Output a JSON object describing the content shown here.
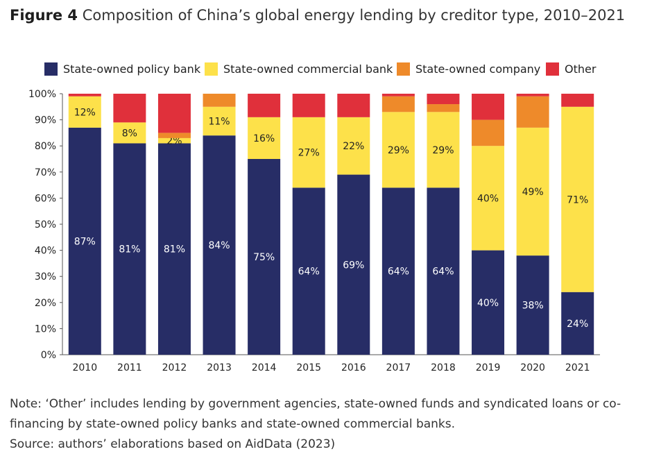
{
  "figure": {
    "label": "Figure 4",
    "title": "Composition of China’s global energy lending by creditor type, 2010–2021"
  },
  "chart_data": {
    "type": "bar",
    "stacked": true,
    "categories": [
      "2010",
      "2011",
      "2012",
      "2013",
      "2014",
      "2015",
      "2016",
      "2017",
      "2018",
      "2019",
      "2020",
      "2021"
    ],
    "series": [
      {
        "name": "State-owned policy bank",
        "color": "#272d66",
        "values": [
          87,
          81,
          81,
          84,
          75,
          64,
          69,
          64,
          64,
          40,
          38,
          24
        ],
        "labels": [
          "87%",
          "81%",
          "81%",
          "84%",
          "75%",
          "64%",
          "69%",
          "64%",
          "64%",
          "40%",
          "38%",
          "24%"
        ]
      },
      {
        "name": "State-owned commercial bank",
        "color": "#fde14a",
        "values": [
          12,
          8,
          2,
          11,
          16,
          27,
          22,
          29,
          29,
          40,
          49,
          71
        ],
        "labels": [
          "12%",
          "8%",
          "2%",
          "11%",
          "16%",
          "27%",
          "22%",
          "29%",
          "29%",
          "40%",
          "49%",
          "71%"
        ]
      },
      {
        "name": "State-owned company",
        "color": "#ee8a2a",
        "values": [
          0,
          0,
          2,
          5,
          0,
          0,
          0,
          6,
          3,
          10,
          12,
          0
        ],
        "labels": [
          "",
          "",
          "",
          "",
          "",
          "",
          "",
          "",
          "",
          "",
          "",
          ""
        ]
      },
      {
        "name": "Other",
        "color": "#e0303b",
        "values": [
          1,
          11,
          15,
          0,
          9,
          9,
          9,
          1,
          4,
          10,
          1,
          5
        ],
        "labels": [
          "",
          "",
          "",
          "",
          "",
          "",
          "",
          "",
          "",
          "",
          "",
          ""
        ]
      }
    ],
    "ylim": [
      0,
      100
    ],
    "yticks": [
      "0%",
      "10%",
      "20%",
      "30%",
      "40%",
      "50%",
      "60%",
      "70%",
      "80%",
      "90%",
      "100%"
    ],
    "legend_position": "top",
    "grid": false
  },
  "notes": {
    "note": "Note: ‘Other’ includes lending by government agencies, state-owned funds and syndicated loans or co-financing by state-owned policy banks and state-owned commercial banks.",
    "source": "Source: authors’ elaborations based on AidData (2023)"
  }
}
